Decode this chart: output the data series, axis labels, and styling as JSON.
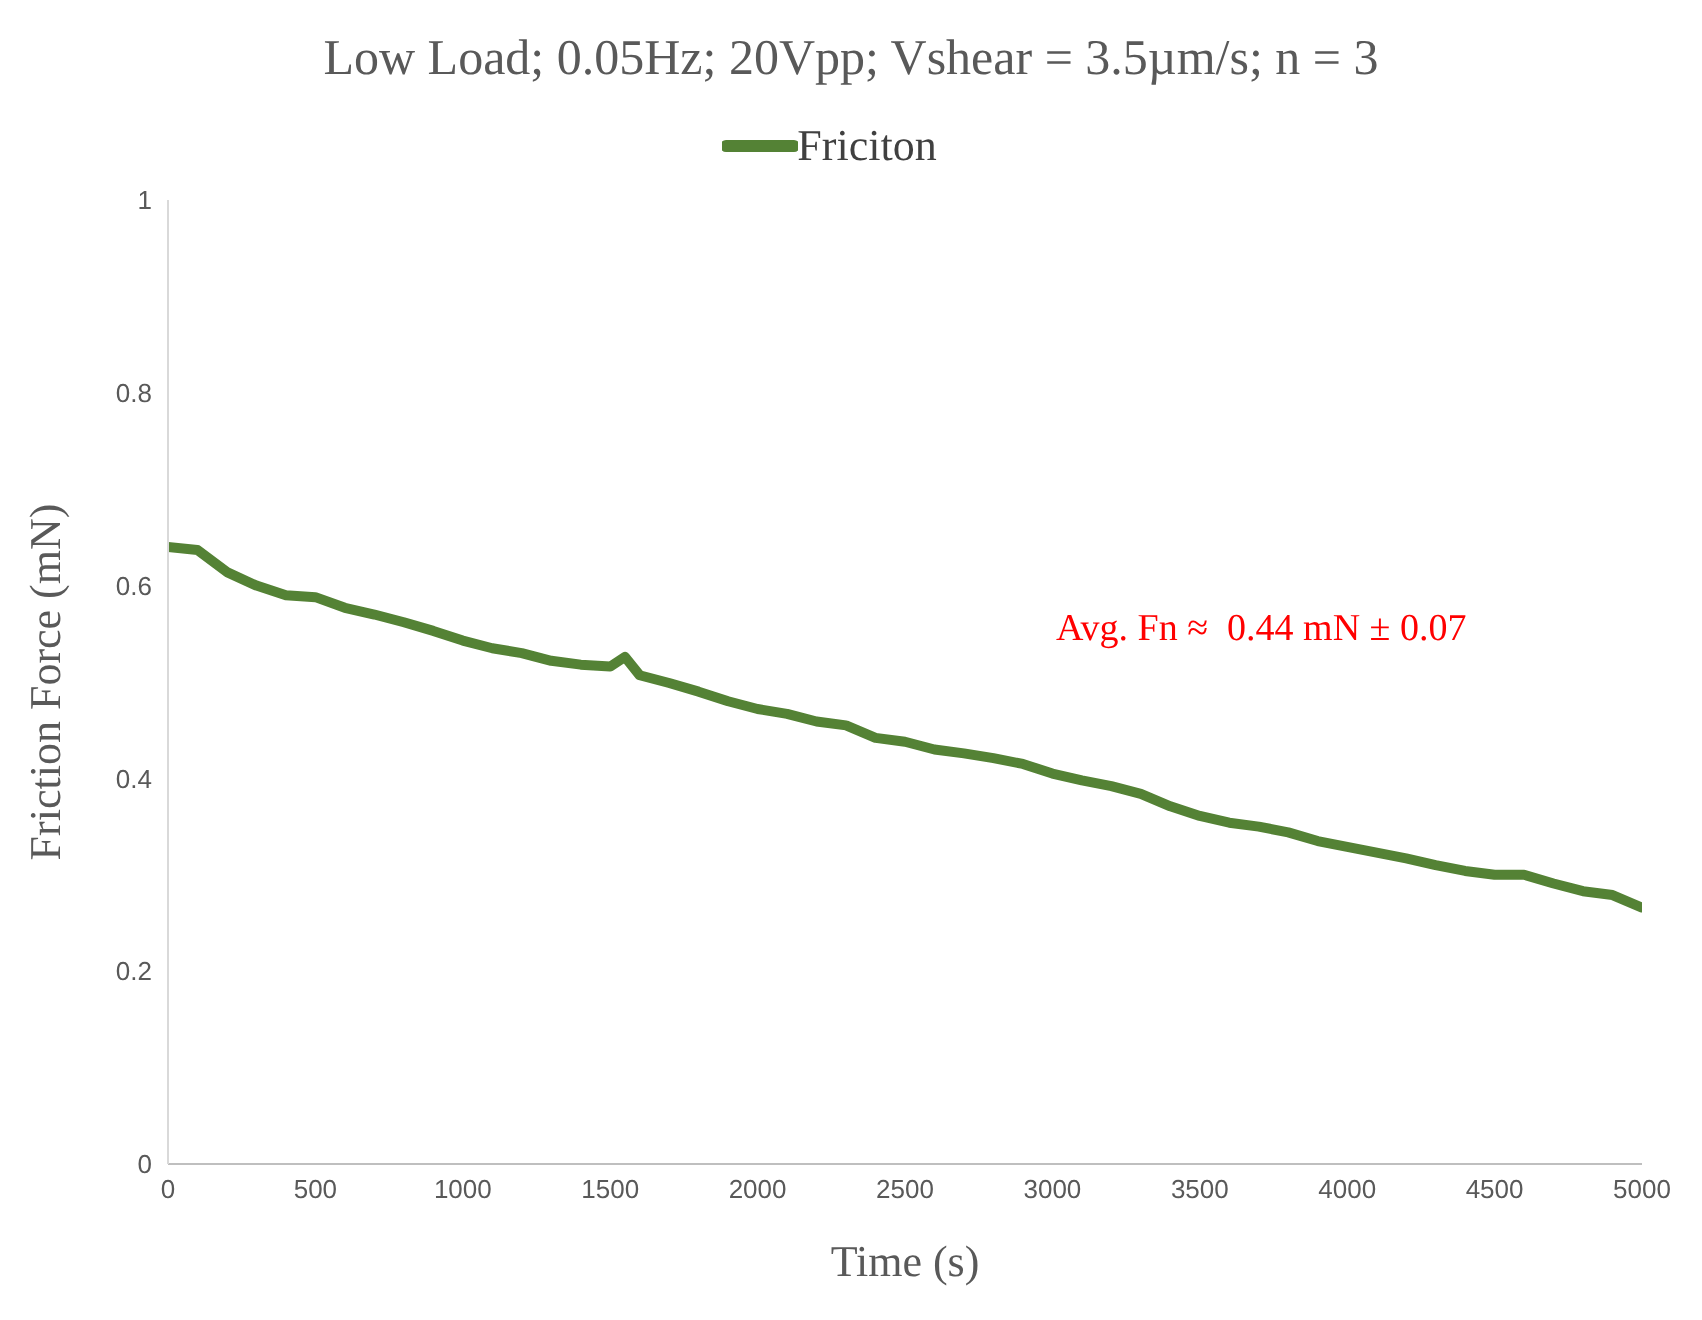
{
  "chart_data": {
    "type": "line",
    "title": "Low Load; 0.05Hz; 20Vpp; Vshear = 3.5µm/s; n = 3",
    "xlabel": "Time (s)",
    "ylabel": "Friction Force (mN)",
    "annotations": [
      "Avg. Fn ≈  0.44 mN ± 0.07"
    ],
    "x": [
      0,
      100,
      200,
      300,
      400,
      500,
      600,
      700,
      800,
      900,
      1000,
      1100,
      1200,
      1300,
      1400,
      1500,
      1550,
      1600,
      1700,
      1800,
      1900,
      2000,
      2100,
      2200,
      2300,
      2400,
      2500,
      2600,
      2700,
      2800,
      2900,
      3000,
      3100,
      3200,
      3300,
      3400,
      3500,
      3600,
      3700,
      3800,
      3900,
      4000,
      4100,
      4200,
      4300,
      4400,
      4500,
      4600,
      4700,
      4800,
      4900,
      5000
    ],
    "series": [
      {
        "name": "Friciton",
        "color": "#548235",
        "values": [
          0.64,
          0.637,
          0.614,
          0.6,
          0.59,
          0.588,
          0.577,
          0.57,
          0.562,
          0.553,
          0.543,
          0.535,
          0.53,
          0.522,
          0.518,
          0.516,
          0.526,
          0.507,
          0.499,
          0.49,
          0.48,
          0.472,
          0.467,
          0.459,
          0.455,
          0.442,
          0.438,
          0.43,
          0.426,
          0.421,
          0.415,
          0.405,
          0.398,
          0.392,
          0.384,
          0.371,
          0.361,
          0.354,
          0.35,
          0.344,
          0.335,
          0.329,
          0.323,
          0.317,
          0.31,
          0.304,
          0.3,
          0.3,
          0.291,
          0.283,
          0.279,
          0.266
        ]
      }
    ],
    "xlim": [
      0,
      5000
    ],
    "xticks": [
      0,
      500,
      1000,
      1500,
      2000,
      2500,
      3000,
      3500,
      4000,
      4500,
      5000
    ],
    "ylim": [
      0,
      1
    ],
    "yticks": [
      0,
      0.2,
      0.4,
      0.6,
      0.8,
      1
    ],
    "legend": "top",
    "grid": false,
    "marker": "none",
    "line_style": "solid"
  }
}
